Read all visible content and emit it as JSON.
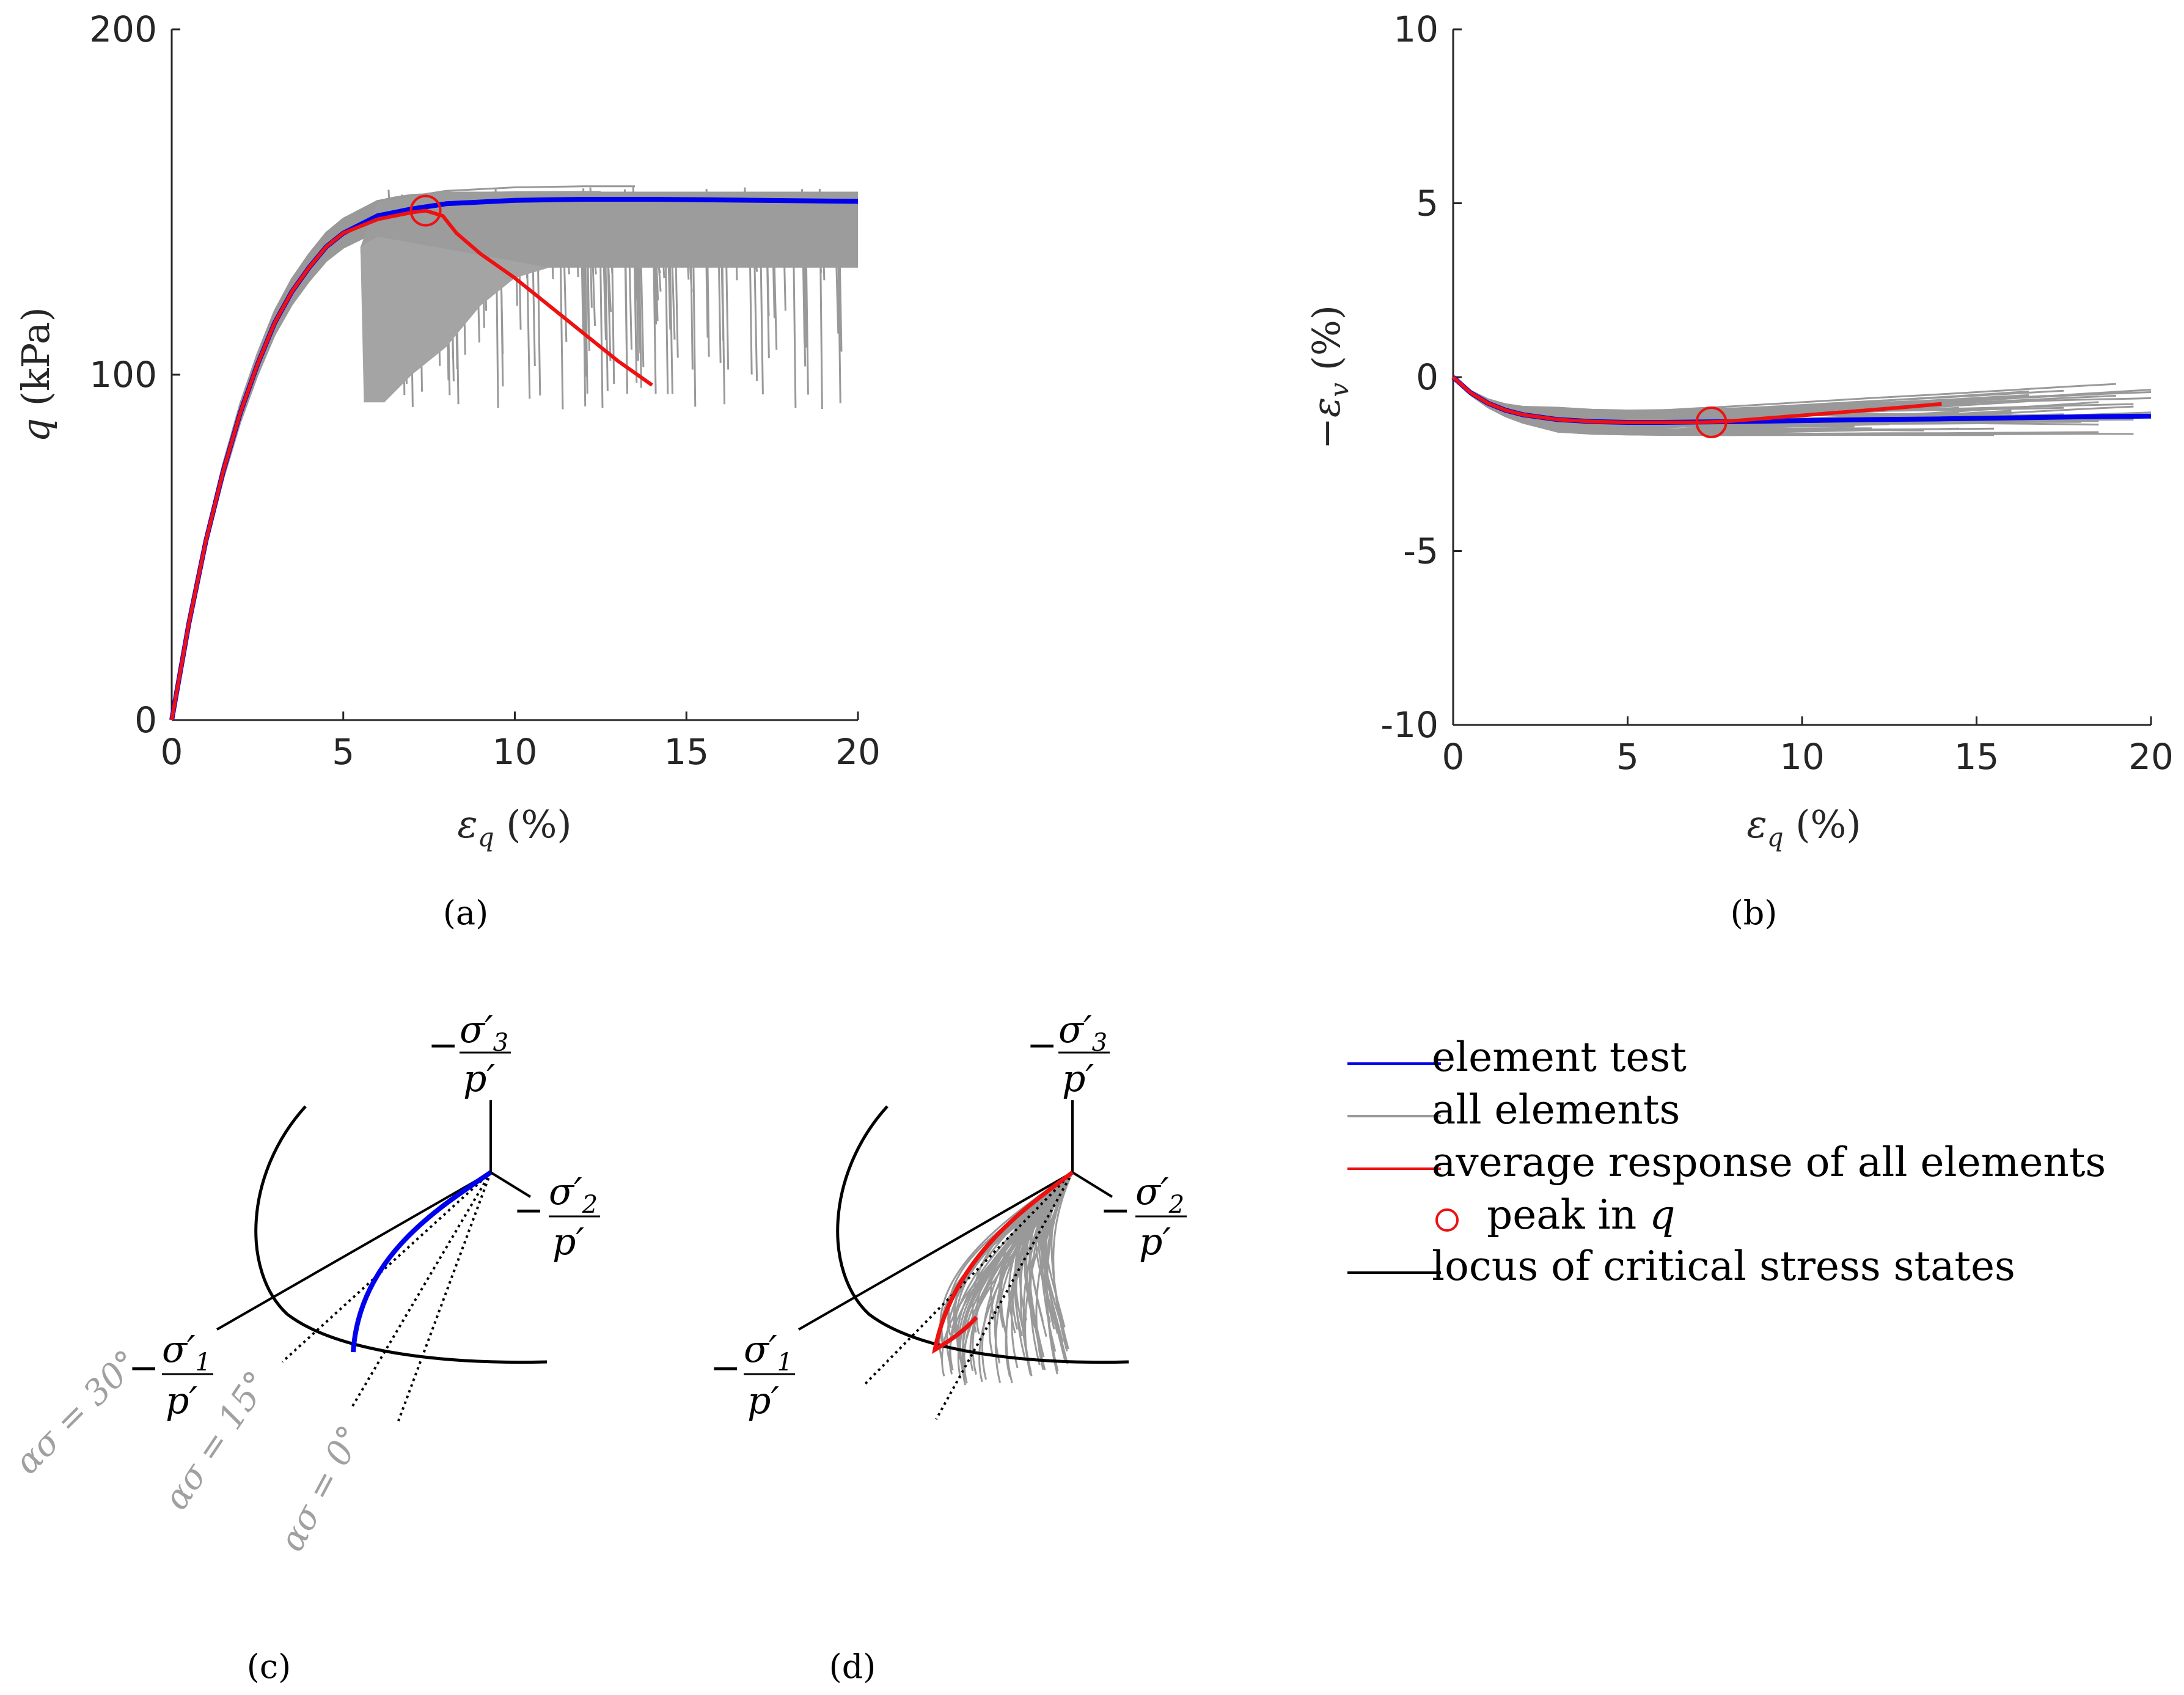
{
  "colors": {
    "element_test": "#0000ee",
    "all_elements": "#999999",
    "average": "#ee1111",
    "critical_locus": "#000000"
  },
  "chart_data": [
    {
      "id": "a",
      "type": "line",
      "caption": "(a)",
      "xlabel": "εq (%)",
      "ylabel": "q (kPa)",
      "xlim": [
        0,
        20
      ],
      "ylim": [
        0,
        200
      ],
      "xticks": [
        "0",
        "5",
        "10",
        "15",
        "20"
      ],
      "yticks": [
        "0",
        "100",
        "200"
      ],
      "series": [
        {
          "name": "element test",
          "color": "#0000ee",
          "x": [
            0,
            0.5,
            1,
            1.5,
            2,
            2.5,
            3,
            3.5,
            4,
            4.5,
            5,
            6,
            7,
            8,
            9,
            10,
            12,
            14,
            16,
            18,
            20
          ],
          "y": [
            0,
            28,
            52,
            72,
            89,
            103,
            115,
            124,
            131,
            137,
            141,
            146,
            148,
            149.5,
            150,
            150.5,
            150.8,
            150.8,
            150.6,
            150.4,
            150.2
          ]
        },
        {
          "name": "average response of all elements",
          "color": "#ee1111",
          "x": [
            0,
            0.5,
            1,
            1.5,
            2,
            2.5,
            3,
            3.5,
            4,
            4.5,
            5,
            6,
            7,
            7.4,
            7.9,
            8.3,
            9,
            10,
            11,
            12,
            13,
            14
          ],
          "y": [
            0,
            28,
            52,
            72,
            89,
            103,
            115,
            124,
            131,
            137,
            141,
            145,
            147,
            147.5,
            146,
            141,
            135,
            128,
            120,
            112,
            104,
            97
          ]
        }
      ],
      "peak": {
        "x": 7.4,
        "y": 147.5
      }
    },
    {
      "id": "b",
      "type": "line",
      "caption": "(b)",
      "xlabel": "εq (%)",
      "ylabel": "−εv (%)",
      "xlim": [
        0,
        20
      ],
      "ylim": [
        -10,
        10
      ],
      "xticks": [
        "0",
        "5",
        "10",
        "15",
        "20"
      ],
      "yticks": [
        "-10",
        "-5",
        "0",
        "5",
        "10"
      ],
      "series": [
        {
          "name": "element test",
          "color": "#0000ee",
          "x": [
            0,
            0.5,
            1,
            1.5,
            2,
            3,
            4,
            5,
            6,
            7,
            8,
            10,
            12,
            14,
            16,
            18,
            20
          ],
          "y": [
            0,
            -0.45,
            -0.75,
            -0.95,
            -1.08,
            -1.22,
            -1.28,
            -1.3,
            -1.3,
            -1.29,
            -1.28,
            -1.25,
            -1.22,
            -1.2,
            -1.17,
            -1.14,
            -1.12
          ]
        },
        {
          "name": "average response of all elements",
          "color": "#ee1111",
          "x": [
            0,
            0.5,
            1,
            1.5,
            2,
            3,
            4,
            5,
            6,
            7,
            7.4,
            8,
            9,
            10,
            11,
            12,
            13,
            14
          ],
          "y": [
            0,
            -0.45,
            -0.75,
            -0.95,
            -1.08,
            -1.22,
            -1.28,
            -1.3,
            -1.3,
            -1.3,
            -1.29,
            -1.26,
            -1.18,
            -1.1,
            -1.02,
            -0.94,
            -0.86,
            -0.77
          ]
        }
      ],
      "peak": {
        "x": 7.4,
        "y": -1.3
      }
    }
  ],
  "diagrams": {
    "c": {
      "caption": "(c)",
      "axis_labels": [
        "−σ′1/p′",
        "−σ′2/p′",
        "−σ′3/p′"
      ],
      "alpha_labels": [
        "ασ = 30°",
        "ασ = 15°",
        "ασ = 0°"
      ]
    },
    "d": {
      "caption": "(d)",
      "axis_labels": [
        "−σ′1/p′",
        "−σ′2/p′",
        "−σ′3/p′"
      ]
    }
  },
  "legend": {
    "items": [
      {
        "label": "element test",
        "color": "#0000ee",
        "marker": "line"
      },
      {
        "label": "all elements",
        "color": "#999999",
        "marker": "line"
      },
      {
        "label": "average response of all elements",
        "color": "#ee1111",
        "marker": "line"
      },
      {
        "label": "peak in ",
        "label_math": "q",
        "color": "#ee1111",
        "marker": "circle"
      },
      {
        "label": "locus of critical stress states",
        "color": "#000000",
        "marker": "line"
      }
    ]
  }
}
